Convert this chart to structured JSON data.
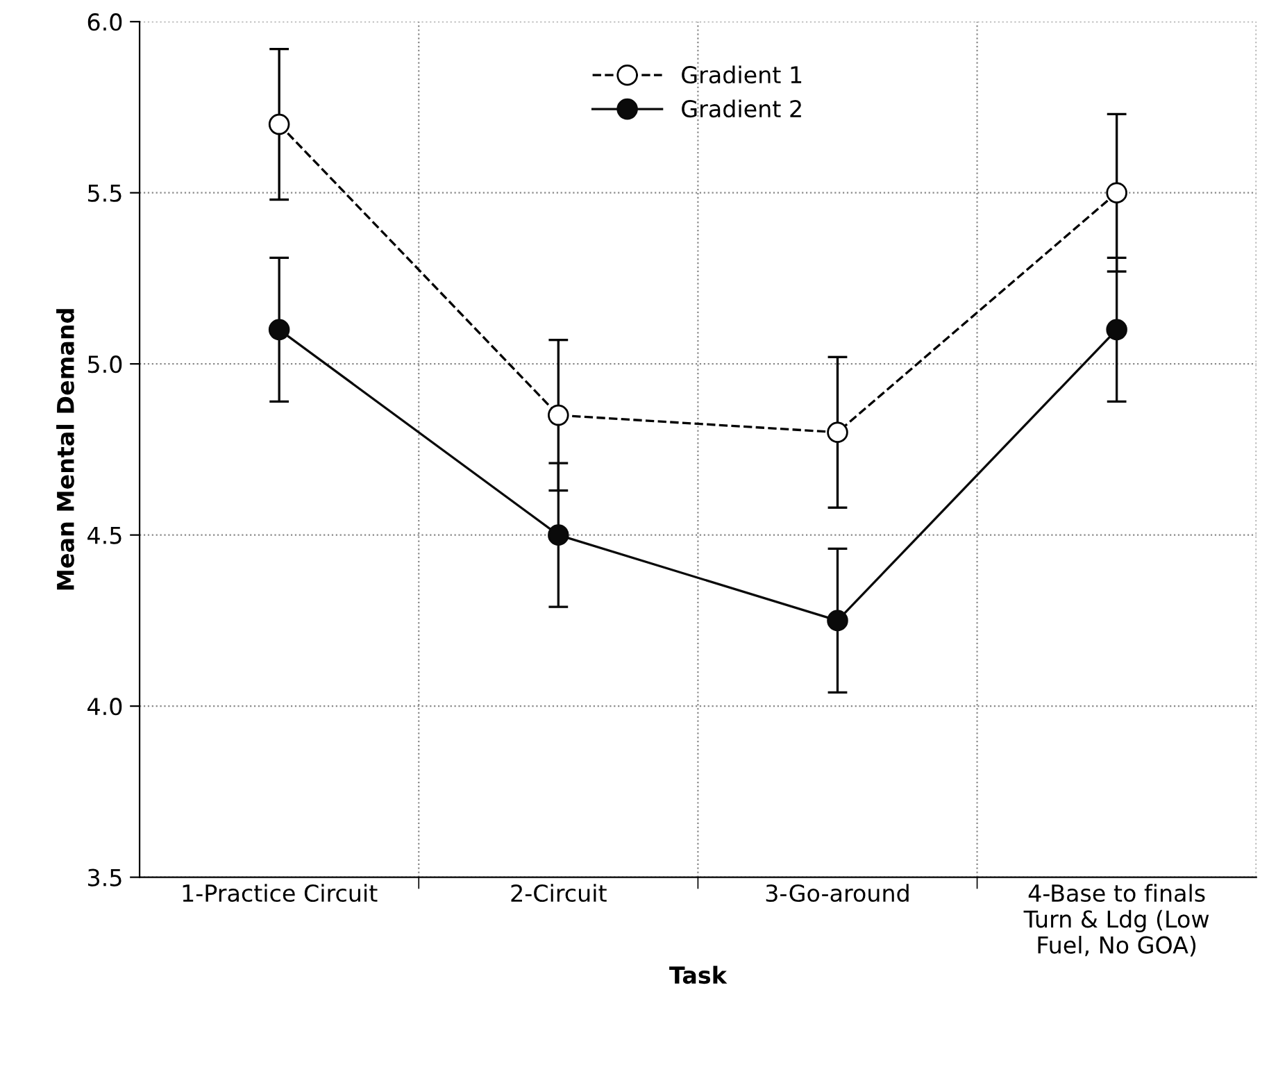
{
  "chart_data": {
    "type": "line",
    "xlabel": "Task",
    "ylabel": "Mean Mental Demand",
    "categories": [
      "1-Practice Circuit",
      "2-Circuit",
      "3-Go-around",
      "4-Base to finals\nTurn & Ldg (Low\nFuel, No GOA)"
    ],
    "series": [
      {
        "name": "Gradient 1",
        "color": "#000000",
        "line_style": "dashed",
        "marker": "circle",
        "values": [
          5.7,
          4.85,
          4.8,
          5.5
        ],
        "errors": [
          0.22,
          0.22,
          0.22,
          0.23
        ]
      },
      {
        "name": "Gradient 2",
        "color": "#0a0a0a",
        "line_style": "solid",
        "marker": "circle",
        "values": [
          5.1,
          4.5,
          4.25,
          5.1
        ],
        "errors": [
          0.21,
          0.21,
          0.21,
          0.21
        ]
      }
    ],
    "ylim": [
      3.5,
      6.0
    ],
    "yticks": [
      {
        "value": 3.5,
        "label": "3.5"
      },
      {
        "value": 4.0,
        "label": "4.0"
      },
      {
        "value": 4.5,
        "label": "4.5"
      },
      {
        "value": 5.0,
        "label": "5.0"
      },
      {
        "value": 5.5,
        "label": "5.5"
      },
      {
        "value": 6.0,
        "label": "6.0"
      }
    ],
    "grid": true,
    "legend": "top"
  }
}
